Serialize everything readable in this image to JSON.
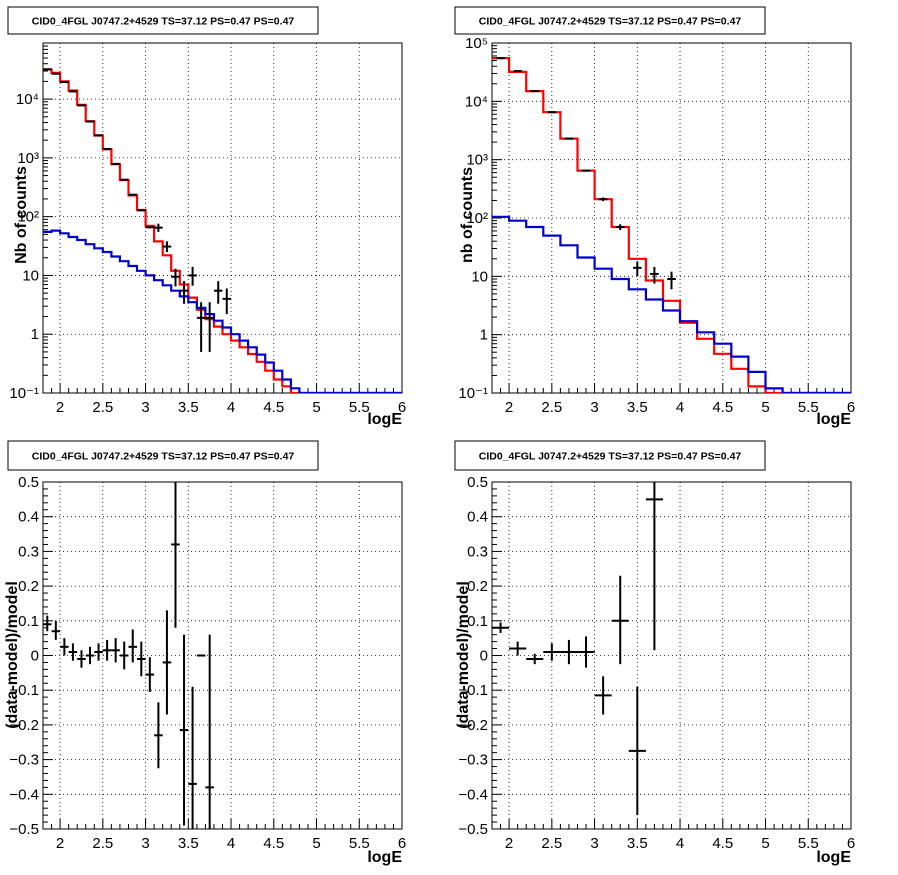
{
  "chart_data": [
    {
      "type": "line",
      "title": "CID0_4FGL J0747.2+4529 TS=37.12 PS=0.47 PS=0.47",
      "xlabel": "logE",
      "ylabel": "Nb of counts",
      "xlim": [
        1.8,
        6
      ],
      "ylim": [
        0.1,
        90000
      ],
      "yscale": "log",
      "grid": true,
      "xticks": [
        "2",
        "2.5",
        "3",
        "3.5",
        "4",
        "4.5",
        "5",
        "5.5",
        "6"
      ],
      "yticks": [
        "10⁻¹",
        "1",
        "10",
        "10²",
        "10³",
        "10⁴"
      ],
      "series": [
        {
          "kind": "step",
          "color": "#ff0000",
          "edges": [
            1.8,
            1.9,
            2.0,
            2.1,
            2.2,
            2.3,
            2.4,
            2.5,
            2.6,
            2.7,
            2.8,
            2.9,
            3.0,
            3.1,
            3.2,
            3.3,
            3.4,
            3.5,
            3.6,
            3.7,
            3.8,
            3.9,
            4.0,
            4.1,
            4.2,
            4.3,
            4.4,
            4.5,
            4.6,
            4.7,
            4.8,
            4.9,
            5.0,
            5.1,
            5.2,
            5.3,
            5.4,
            5.5,
            5.6,
            5.7,
            5.8,
            5.9,
            6.0
          ],
          "values": [
            32000,
            28000,
            20000,
            14000,
            8000,
            4200,
            2400,
            1400,
            780,
            420,
            230,
            130,
            70,
            38,
            22,
            12,
            7,
            4.2,
            2.6,
            1.8,
            1.35,
            1.0,
            0.78,
            0.6,
            0.46,
            0.34,
            0.24,
            0.17,
            0.13,
            0.1,
            0.1,
            0.1,
            0.1,
            0.1,
            0.1,
            0.1,
            0.1,
            0.1,
            0.1,
            0.1,
            0.1,
            0.1
          ]
        },
        {
          "kind": "step",
          "color": "#0000cc",
          "edges": [
            1.8,
            1.9,
            2.0,
            2.1,
            2.2,
            2.3,
            2.4,
            2.5,
            2.6,
            2.7,
            2.8,
            2.9,
            3.0,
            3.1,
            3.2,
            3.3,
            3.4,
            3.5,
            3.6,
            3.7,
            3.8,
            3.9,
            4.0,
            4.1,
            4.2,
            4.3,
            4.4,
            4.5,
            4.6,
            4.7,
            4.8,
            4.9,
            5.0,
            5.1,
            5.2,
            5.3,
            5.4,
            5.5,
            5.6,
            5.7,
            5.8,
            5.9,
            6.0
          ],
          "values": [
            55,
            58,
            52,
            45,
            40,
            34,
            29,
            25,
            21,
            17.5,
            14.5,
            12,
            10,
            8.3,
            6.8,
            5.5,
            4.4,
            3.5,
            2.8,
            2.2,
            1.7,
            1.3,
            1.0,
            0.78,
            0.6,
            0.45,
            0.33,
            0.24,
            0.17,
            0.12,
            0.1,
            0.1,
            0.1,
            0.1,
            0.1,
            0.1,
            0.1,
            0.1,
            0.1,
            0.1,
            0.1,
            0.1
          ]
        },
        {
          "kind": "points",
          "color": "#000000",
          "x": [
            1.85,
            1.95,
            2.05,
            2.15,
            2.25,
            2.35,
            2.45,
            2.55,
            2.65,
            2.75,
            2.85,
            2.95,
            3.05,
            3.15,
            3.25,
            3.35,
            3.45,
            3.55,
            3.65,
            3.75,
            3.85,
            3.95
          ],
          "y": [
            32000,
            27000,
            19500,
            13500,
            7800,
            4150,
            2420,
            1420,
            790,
            425,
            236,
            128,
            66,
            65,
            31,
            9.5,
            5.5,
            10,
            1.9,
            1.9,
            5.5,
            4
          ],
          "ylow": [
            31500,
            26600,
            19200,
            13300,
            7650,
            4050,
            2370,
            1390,
            770,
            415,
            230,
            124,
            63,
            55,
            25,
            6.5,
            3.3,
            6.7,
            0.5,
            0.5,
            3.3,
            2.2
          ],
          "yhigh": [
            32500,
            27400,
            19800,
            13700,
            7950,
            4250,
            2470,
            1450,
            810,
            435,
            242,
            132,
            69,
            76,
            38,
            13,
            8,
            14,
            3.5,
            3.5,
            8,
            6
          ]
        }
      ]
    },
    {
      "type": "line",
      "title": "CID0_4FGL J0747.2+4529 TS=37.12 PS=0.47 PS=0.47",
      "xlabel": "logE",
      "ylabel": "nb of counts",
      "xlim": [
        1.8,
        6
      ],
      "ylim": [
        0.1,
        100000
      ],
      "yscale": "log",
      "grid": true,
      "xticks": [
        "2",
        "2.5",
        "3",
        "3.5",
        "4",
        "4.5",
        "5",
        "5.5",
        "6"
      ],
      "yticks": [
        "10⁻¹",
        "1",
        "10",
        "10²",
        "10³",
        "10⁴",
        "10⁵"
      ],
      "series": [
        {
          "kind": "step",
          "color": "#ff0000",
          "edges": [
            1.8,
            2.0,
            2.2,
            2.4,
            2.6,
            2.8,
            3.0,
            3.2,
            3.4,
            3.6,
            3.8,
            4.0,
            4.2,
            4.4,
            4.6,
            4.8,
            5.0,
            5.2,
            5.4,
            5.6,
            5.8,
            6.0
          ],
          "values": [
            55000,
            32000,
            15000,
            6500,
            2300,
            650,
            210,
            70,
            20,
            8.5,
            3.8,
            1.6,
            0.85,
            0.47,
            0.26,
            0.13,
            0.1,
            0.1,
            0.1,
            0.1,
            0.1
          ]
        },
        {
          "kind": "step",
          "color": "#0000cc",
          "edges": [
            1.8,
            2.0,
            2.2,
            2.4,
            2.6,
            2.8,
            3.0,
            3.2,
            3.4,
            3.6,
            3.8,
            4.0,
            4.2,
            4.4,
            4.6,
            4.8,
            5.0,
            5.2,
            5.4,
            5.6,
            5.8,
            6.0
          ],
          "values": [
            105,
            90,
            70,
            50,
            34,
            21,
            13.5,
            9,
            6,
            4,
            2.6,
            1.7,
            1.1,
            0.7,
            0.42,
            0.23,
            0.12,
            0.1,
            0.1,
            0.1,
            0.1
          ]
        },
        {
          "kind": "points",
          "color": "#000000",
          "x": [
            1.9,
            2.1,
            2.3,
            2.5,
            2.7,
            2.9,
            3.1,
            3.3,
            3.5,
            3.7,
            3.9
          ],
          "y": [
            55000,
            33000,
            15000,
            6500,
            2300,
            650,
            210,
            70,
            14,
            11,
            9
          ],
          "ylow": [
            54500,
            32700,
            14800,
            6420,
            2260,
            630,
            195,
            62,
            10,
            7.5,
            6
          ],
          "yhigh": [
            55500,
            33300,
            15200,
            6580,
            2340,
            670,
            225,
            78,
            18,
            14.5,
            12
          ]
        }
      ]
    },
    {
      "type": "scatter",
      "title": "CID0_4FGL J0747.2+4529 TS=37.12 PS=0.47 PS=0.47",
      "xlabel": "logE",
      "ylabel": "(data-model)/model",
      "xlim": [
        1.8,
        6
      ],
      "ylim": [
        -0.5,
        0.5
      ],
      "grid": true,
      "xticks": [
        "2",
        "2.5",
        "3",
        "3.5",
        "4",
        "4.5",
        "5",
        "5.5",
        "6"
      ],
      "yticks": [
        "−0.5",
        "−0.4",
        "−0.3",
        "−0.2",
        "−0.1",
        "0",
        "0.1",
        "0.2",
        "0.3",
        "0.4",
        "0.5"
      ],
      "series": [
        {
          "kind": "points",
          "color": "#000000",
          "x": [
            1.85,
            1.95,
            2.05,
            2.15,
            2.25,
            2.35,
            2.45,
            2.55,
            2.65,
            2.75,
            2.85,
            2.95,
            3.05,
            3.15,
            3.25,
            3.35,
            3.45,
            3.55,
            3.65,
            3.75
          ],
          "y": [
            0.09,
            0.07,
            0.025,
            0.01,
            -0.01,
            0.0,
            0.01,
            0.015,
            0.015,
            0.0,
            0.025,
            -0.01,
            -0.055,
            -0.23,
            -0.02,
            0.32,
            -0.215,
            -0.37,
            0.0,
            -0.38
          ],
          "ylow": [
            0.07,
            0.045,
            0.0,
            -0.015,
            -0.035,
            -0.025,
            -0.015,
            -0.015,
            -0.02,
            -0.04,
            -0.02,
            -0.06,
            -0.105,
            -0.325,
            -0.17,
            0.08,
            -0.49,
            -0.5,
            0.0,
            -0.5
          ],
          "yhigh": [
            0.115,
            0.1,
            0.05,
            0.035,
            0.015,
            0.025,
            0.035,
            0.045,
            0.05,
            0.04,
            0.075,
            0.04,
            -0.005,
            -0.135,
            0.13,
            0.5,
            0.06,
            -0.09,
            0.0,
            0.06
          ],
          "xerr": 0.05
        }
      ]
    },
    {
      "type": "scatter",
      "title": "CID0_4FGL J0747.2+4529 TS=37.12 PS=0.47 PS=0.47",
      "xlabel": "logE",
      "ylabel": "(data-model)/model",
      "xlim": [
        1.8,
        6
      ],
      "ylim": [
        -0.5,
        0.5
      ],
      "grid": true,
      "xticks": [
        "2",
        "2.5",
        "3",
        "3.5",
        "4",
        "4.5",
        "5",
        "5.5",
        "6"
      ],
      "yticks": [
        "−0.5",
        "−0.4",
        "−0.3",
        "−0.2",
        "−0.1",
        "0",
        "0.1",
        "0.2",
        "0.3",
        "0.4",
        "0.5"
      ],
      "series": [
        {
          "kind": "points",
          "color": "#000000",
          "x": [
            1.9,
            2.1,
            2.3,
            2.5,
            2.7,
            2.9,
            3.1,
            3.3,
            3.5,
            3.7
          ],
          "y": [
            0.08,
            0.02,
            -0.01,
            0.01,
            0.01,
            0.01,
            -0.115,
            0.1,
            -0.275,
            0.45
          ],
          "ylow": [
            0.065,
            0.0,
            -0.025,
            -0.015,
            -0.025,
            -0.035,
            -0.17,
            -0.025,
            -0.46,
            0.015
          ],
          "yhigh": [
            0.095,
            0.04,
            0.005,
            0.035,
            0.045,
            0.055,
            -0.06,
            0.23,
            -0.09,
            0.5
          ],
          "xerr": 0.1
        }
      ]
    }
  ]
}
